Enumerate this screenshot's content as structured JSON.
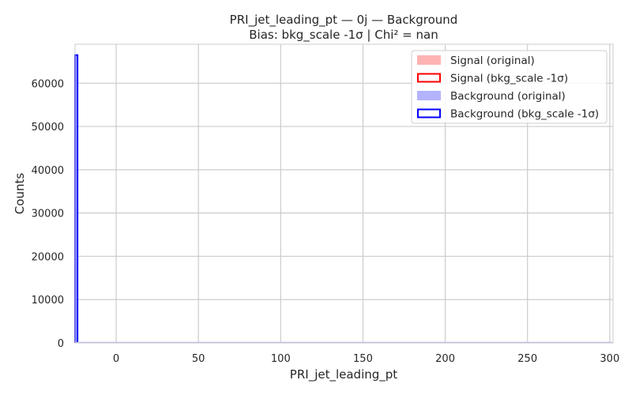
{
  "chart_data": {
    "type": "histogram",
    "title": "PRI_jet_leading_pt — 0j — Background",
    "subtitle": "Bias: bkg_scale -1σ | Chi² = nan",
    "xlabel": "PRI_jet_leading_pt",
    "ylabel": "Counts",
    "xlim": [
      -25,
      302
    ],
    "ylim": [
      0,
      69000
    ],
    "xticks": [
      0,
      50,
      100,
      150,
      200,
      250,
      300
    ],
    "yticks": [
      0,
      10000,
      20000,
      30000,
      40000,
      50000,
      60000
    ],
    "grid": true,
    "legend_position": "top-right",
    "series": [
      {
        "name": "Signal (original)",
        "style": "filled",
        "color": "#ffb3b3",
        "bins": []
      },
      {
        "name": "Signal (bkg_scale -1σ)",
        "style": "step",
        "color": "#ff0000",
        "bins": []
      },
      {
        "name": "Background (original)",
        "style": "filled",
        "color": "#b3b3ff",
        "bins": [
          {
            "x0": -25,
            "x1": -23.5,
            "y": 66500
          }
        ]
      },
      {
        "name": "Background (bkg_scale -1σ)",
        "style": "step",
        "color": "#0000ff",
        "bins": [
          {
            "x0": -25,
            "x1": -23.5,
            "y": 66500
          }
        ]
      }
    ]
  }
}
